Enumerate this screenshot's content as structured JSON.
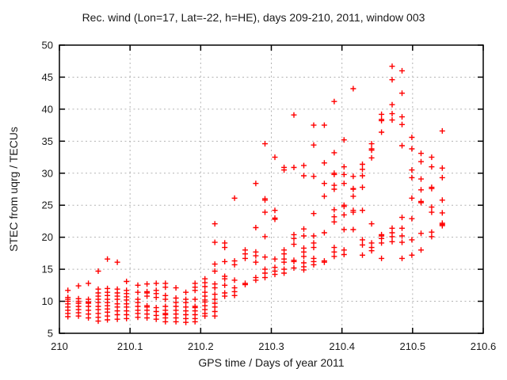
{
  "chart_data": {
    "type": "scatter",
    "title": "Rec. wind (Lon=17, Lat=-22, h=HE), days 209-210, 2011, window 003",
    "xlabel": "GPS time / Days of year 2011",
    "ylabel": "STEC from uqrg / TECUs",
    "xlim": [
      210,
      210.6
    ],
    "ylim": [
      5,
      50
    ],
    "xtick_values": [
      210,
      210.1,
      210.2,
      210.3,
      210.4,
      210.5,
      210.6
    ],
    "xtick_labels": [
      "210",
      "210.1",
      "210.2",
      "210.3",
      "210.4",
      "210.5",
      "210.6"
    ],
    "ytick_values": [
      5,
      10,
      15,
      20,
      25,
      30,
      35,
      40,
      45,
      50
    ],
    "ytick_labels": [
      "5",
      "10",
      "15",
      "20",
      "25",
      "30",
      "35",
      "40",
      "45",
      "50"
    ],
    "grid": true,
    "legend_position": "none",
    "marker": "plus",
    "colors": {
      "marker": "#ff0000",
      "grid": "#b3b3b3",
      "axis": "#000000",
      "text": "#1a1a1a",
      "background": "#ffffff"
    },
    "series": [
      {
        "name": "STEC from uqrg",
        "columns": [
          {
            "t": 210.012,
            "stec": [
              11.7,
              10.6,
              10.3,
              10.0,
              9.6,
              9.1,
              8.6,
              8.1,
              7.6
            ]
          },
          {
            "t": 210.027,
            "stec": [
              12.4,
              10.4,
              10.0,
              9.7,
              9.2,
              8.7,
              8.2,
              7.7
            ]
          },
          {
            "t": 210.041,
            "stec": [
              12.8,
              10.3,
              9.9,
              9.7,
              9.2,
              8.6,
              8.0,
              7.4
            ]
          },
          {
            "t": 210.055,
            "stec": [
              14.7,
              11.9,
              11.3,
              10.8,
              10.3,
              9.8,
              9.2,
              8.7,
              8.1,
              7.5,
              6.9
            ]
          },
          {
            "t": 210.068,
            "stec": [
              16.6,
              12.0,
              11.4,
              10.9,
              10.3,
              9.8,
              9.3,
              8.8,
              8.3,
              7.7,
              7.1
            ]
          },
          {
            "t": 210.082,
            "stec": [
              16.1,
              11.9,
              11.3,
              10.8,
              10.3,
              9.6,
              9.1,
              8.5,
              7.9,
              7.2
            ]
          },
          {
            "t": 210.095,
            "stec": [
              13.1,
              11.7,
              11.2,
              10.7,
              10.2,
              9.6,
              9.1,
              8.5,
              7.9,
              7.3
            ]
          },
          {
            "t": 210.111,
            "stec": [
              12.5,
              11.4,
              10.3,
              9.8,
              9.2,
              8.6,
              8.1,
              7.5
            ]
          },
          {
            "t": 210.124,
            "stec": [
              12.7,
              11.5,
              11.3,
              10.8,
              9.3,
              9.1,
              8.6,
              8.0,
              7.4
            ]
          },
          {
            "t": 210.137,
            "stec": [
              12.8,
              11.7,
              11.2,
              10.6,
              9.0,
              8.4,
              7.8,
              7.2
            ]
          },
          {
            "t": 210.15,
            "stec": [
              12.8,
              12.2,
              10.9,
              10.3,
              9.2,
              8.6,
              8.1,
              7.9,
              7.4,
              6.8
            ]
          },
          {
            "t": 210.165,
            "stec": [
              12.1,
              10.5,
              9.8,
              9.2,
              8.6,
              8.0,
              7.4,
              6.8
            ]
          },
          {
            "t": 210.179,
            "stec": [
              11.4,
              10.3,
              9.8,
              9.1,
              8.5,
              7.9,
              7.3,
              6.7
            ]
          },
          {
            "t": 210.192,
            "stec": [
              12.8,
              12.2,
              11.7,
              10.3,
              9.2,
              9.0,
              8.5,
              7.9,
              7.3,
              6.8
            ]
          },
          {
            "t": 210.206,
            "stec": [
              13.5,
              12.9,
              12.3,
              11.4,
              10.8,
              10.2,
              9.9,
              9.3,
              8.7,
              8.1,
              7.7
            ]
          },
          {
            "t": 210.22,
            "stec": [
              22.1,
              19.2,
              15.8,
              14.7,
              12.7,
              12.1,
              11.1,
              10.3,
              9.7,
              9.1,
              8.4,
              7.7
            ]
          },
          {
            "t": 210.234,
            "stec": [
              19.1,
              18.4,
              16.2,
              13.9,
              13.5,
              12.5,
              11.3,
              10.8
            ]
          },
          {
            "t": 210.248,
            "stec": [
              26.1,
              16.3,
              15.7,
              13.3,
              12.1,
              11.5,
              10.9
            ]
          },
          {
            "t": 210.263,
            "stec": [
              18.0,
              17.4,
              16.7,
              12.8,
              12.6
            ]
          },
          {
            "t": 210.278,
            "stec": [
              28.4,
              21.5,
              17.7,
              17.1,
              16.1,
              13.7,
              13.3
            ]
          },
          {
            "t": 210.291,
            "stec": [
              34.6,
              26.0,
              25.8,
              23.9,
              20.1,
              16.9,
              15.0,
              14.4,
              13.7
            ]
          },
          {
            "t": 210.305,
            "stec": [
              32.5,
              24.2,
              23.0,
              22.8,
              16.6,
              15.3,
              14.7,
              14.2
            ]
          },
          {
            "t": 210.318,
            "stec": [
              30.9,
              30.5,
              18.0,
              17.4,
              16.6,
              16.1,
              15.0,
              14.4
            ]
          },
          {
            "t": 210.332,
            "stec": [
              39.1,
              30.9,
              20.4,
              19.8,
              18.9,
              16.4,
              16.2,
              15.2
            ]
          },
          {
            "t": 210.346,
            "stec": [
              31.2,
              29.6,
              21.3,
              20.2,
              18.3,
              17.7,
              17.0,
              16.0,
              15.4,
              14.9
            ]
          },
          {
            "t": 210.36,
            "stec": [
              37.5,
              34.4,
              29.5,
              23.7,
              20.2,
              19.1,
              18.4,
              16.7,
              16.2,
              15.7
            ]
          },
          {
            "t": 210.375,
            "stec": [
              37.5,
              31.6,
              28.4,
              26.4,
              20.7,
              16.3,
              16.1
            ]
          },
          {
            "t": 210.389,
            "stec": [
              41.2,
              33.2,
              30.0,
              29.8,
              28.1,
              27.5,
              24.3,
              23.2,
              22.4,
              18.4,
              17.7,
              17.0
            ]
          },
          {
            "t": 210.403,
            "stec": [
              35.2,
              31.0,
              29.8,
              28.4,
              25.0,
              24.8,
              23.5,
              21.2,
              18.0,
              17.3
            ]
          },
          {
            "t": 210.416,
            "stec": [
              43.2,
              29.5,
              27.6,
              27.5,
              26.4,
              24.2,
              23.9,
              21.2
            ]
          },
          {
            "t": 210.429,
            "stec": [
              31.4,
              30.6,
              29.6,
              27.8,
              24.2,
              19.6,
              18.8,
              17.2
            ]
          },
          {
            "t": 210.442,
            "stec": [
              34.6,
              33.8,
              33.6,
              32.4,
              22.1,
              19.1,
              18.4,
              17.9
            ]
          },
          {
            "t": 210.456,
            "stec": [
              39.2,
              38.4,
              38.2,
              36.4,
              20.4,
              20.2,
              19.8,
              19.1,
              16.7
            ]
          },
          {
            "t": 210.471,
            "stec": [
              46.7,
              44.6,
              40.7,
              39.3,
              38.3,
              21.4,
              20.7,
              20.1,
              19.3
            ]
          },
          {
            "t": 210.485,
            "stec": [
              46.0,
              42.5,
              38.8,
              37.6,
              34.3,
              23.1,
              21.4,
              20.2,
              19.2,
              16.7
            ]
          },
          {
            "t": 210.499,
            "stec": [
              35.6,
              33.8,
              30.5,
              29.3,
              26.1,
              22.9,
              19.6,
              17.2
            ]
          },
          {
            "t": 210.512,
            "stec": [
              33.1,
              31.8,
              29.1,
              27.4,
              25.6,
              25.4,
              20.6,
              18.0
            ]
          },
          {
            "t": 210.527,
            "stec": [
              32.5,
              31.0,
              27.8,
              27.6,
              24.7,
              23.9,
              20.8,
              20.1
            ]
          },
          {
            "t": 210.542,
            "stec": [
              36.6,
              30.8,
              29.3,
              25.8,
              23.8,
              22.2,
              22.0,
              21.8
            ]
          }
        ]
      }
    ]
  }
}
